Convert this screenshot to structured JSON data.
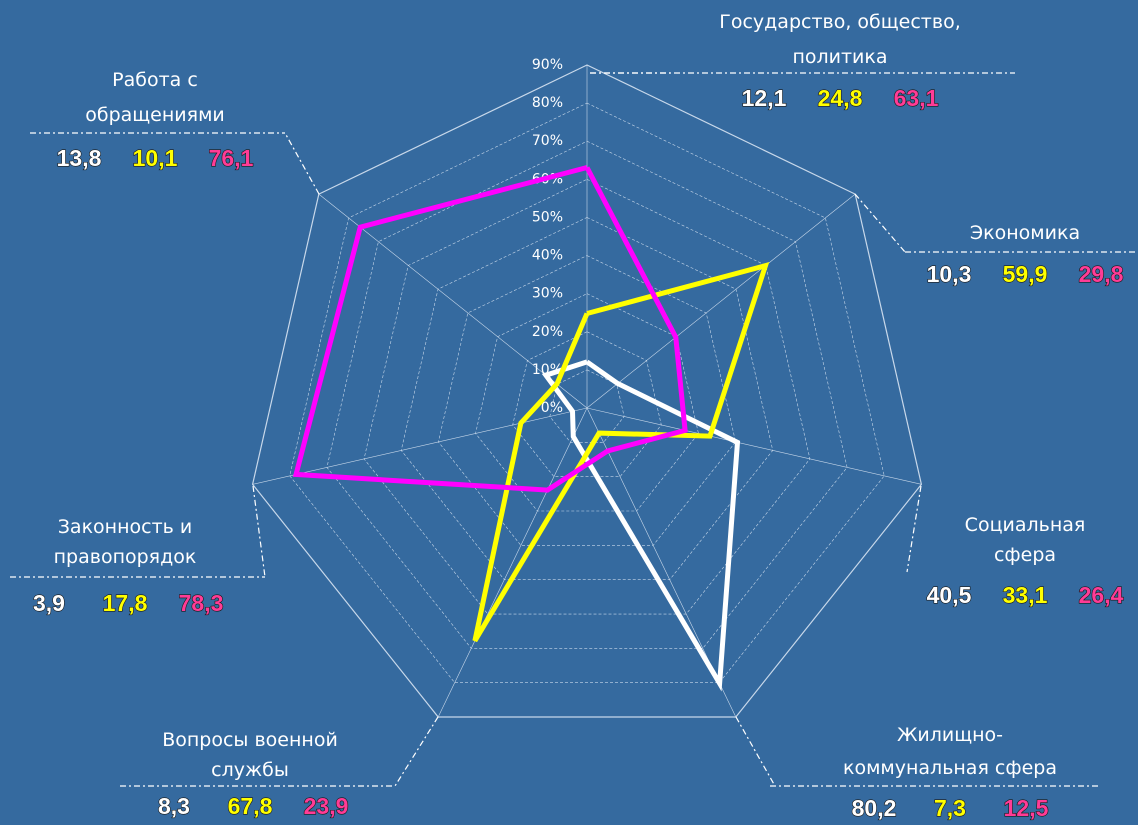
{
  "chart_data": {
    "type": "radar",
    "categories": [
      "Государство, общество,\nполитика",
      "Экономика",
      "Социальная\nсфера",
      "Жилищно-\nкоммунальная сфера",
      "Вопросы военной\nслужбы",
      "Законность и\nправопорядок",
      "Работа с\nобращениями"
    ],
    "series": [
      {
        "color": "#ffffff",
        "label_color": "#ffffff",
        "values": [
          12.1,
          10.3,
          40.5,
          80.2,
          8.3,
          3.9,
          13.8
        ],
        "value_labels": [
          "12,1",
          "10,3",
          "40,5",
          "80,2",
          "8,3",
          "3,9",
          "13,8"
        ]
      },
      {
        "color": "#ffff00",
        "label_color": "#ffff00",
        "values": [
          24.8,
          59.9,
          33.1,
          7.3,
          67.8,
          17.8,
          10.1
        ],
        "value_labels": [
          "24,8",
          "59,9",
          "33,1",
          "7,3",
          "67,8",
          "17,8",
          "10,1"
        ]
      },
      {
        "color": "#ff00ff",
        "label_color": "#ff3c96",
        "values": [
          63.1,
          29.8,
          26.4,
          12.5,
          23.9,
          78.3,
          76.1
        ],
        "value_labels": [
          "63,1",
          "29,8",
          "26,4",
          "12,5",
          "23,9",
          "78,3",
          "76,1"
        ]
      }
    ],
    "rlim": [
      0,
      90
    ],
    "rticks": [
      {
        "value": 0,
        "label": "0%"
      },
      {
        "value": 10,
        "label": "10%"
      },
      {
        "value": 20,
        "label": "20%"
      },
      {
        "value": 30,
        "label": "30%"
      },
      {
        "value": 40,
        "label": "40%"
      },
      {
        "value": 50,
        "label": "50%"
      },
      {
        "value": 60,
        "label": "60%"
      },
      {
        "value": 70,
        "label": "70%"
      },
      {
        "value": 80,
        "label": "80%"
      },
      {
        "value": 90,
        "label": "90%"
      }
    ],
    "grid": true
  }
}
